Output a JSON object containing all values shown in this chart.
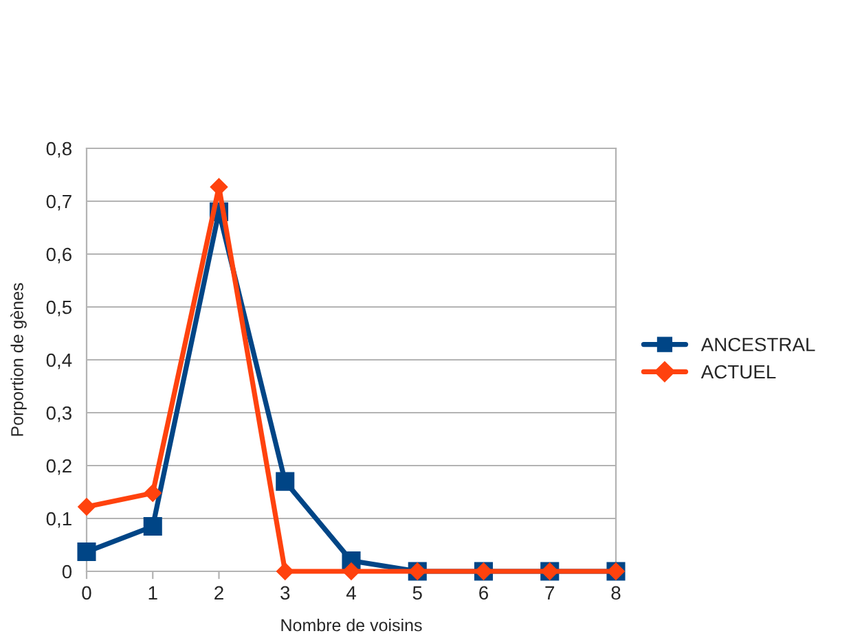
{
  "chart_data": {
    "type": "line",
    "xlabel": "Nombre de voisins",
    "ylabel": "Porportion de gènes",
    "x": [
      0,
      1,
      2,
      3,
      4,
      5,
      6,
      7,
      8
    ],
    "series": [
      {
        "name": "ANCESTRAL",
        "color": "#004586",
        "marker": "square",
        "values": [
          0.037,
          0.085,
          0.68,
          0.17,
          0.02,
          0,
          0,
          0,
          0
        ]
      },
      {
        "name": "ACTUEL",
        "color": "#ff420e",
        "marker": "diamond",
        "values": [
          0.122,
          0.148,
          0.727,
          0,
          0,
          0,
          0,
          0,
          0
        ]
      }
    ],
    "xlim": [
      0,
      8
    ],
    "xticks": [
      0,
      1,
      2,
      3,
      4,
      5,
      6,
      7,
      8
    ],
    "ylim": [
      0,
      0.8
    ],
    "yticks": [
      {
        "value": 0,
        "label": "0"
      },
      {
        "value": 0.1,
        "label": "0,1"
      },
      {
        "value": 0.2,
        "label": "0,2"
      },
      {
        "value": 0.3,
        "label": "0,3"
      },
      {
        "value": 0.4,
        "label": "0,4"
      },
      {
        "value": 0.5,
        "label": "0,5"
      },
      {
        "value": 0.6,
        "label": "0,6"
      },
      {
        "value": 0.7,
        "label": "0,7"
      },
      {
        "value": 0.8,
        "label": "0,8"
      }
    ],
    "grid": "y",
    "legend": "right",
    "line_style": "solid"
  }
}
